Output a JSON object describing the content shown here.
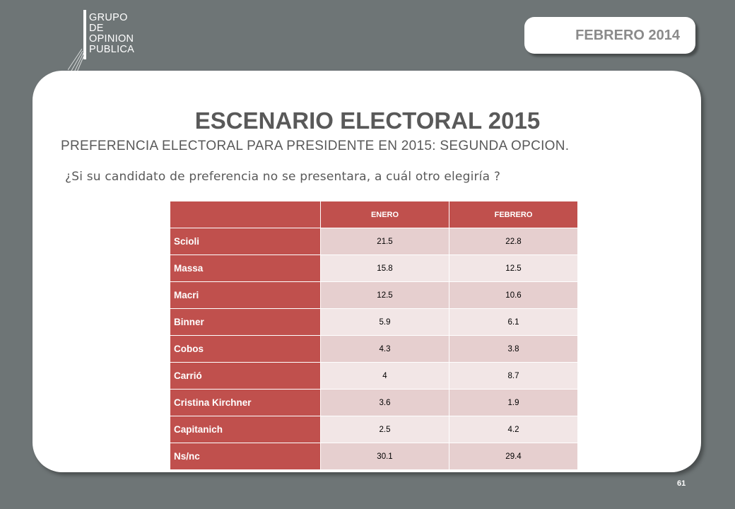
{
  "logo": {
    "lines": [
      "GRUPO",
      "DE",
      "OPINION",
      "PUBLICA"
    ]
  },
  "date_badge": "FEBRERO 2014",
  "title": "ESCENARIO ELECTORAL 2015",
  "subtitle": "PREFERENCIA ELECTORAL PARA PRESIDENTE EN 2015: SEGUNDA OPCION.",
  "question": "¿Si su candidato de preferencia no se presentara, a cuál otro elegiría ?",
  "table": {
    "headers": [
      "",
      "ENERO",
      "FEBRERO"
    ],
    "rows": [
      {
        "name": "Scioli",
        "enero": "21.5",
        "febrero": "22.8"
      },
      {
        "name": "Massa",
        "enero": "15.8",
        "febrero": "12.5"
      },
      {
        "name": "Macri",
        "enero": "12.5",
        "febrero": "10.6"
      },
      {
        "name": "Binner",
        "enero": "5.9",
        "febrero": "6.1"
      },
      {
        "name": "Cobos",
        "enero": "4.3",
        "febrero": "3.8"
      },
      {
        "name": "Carrió",
        "enero": "4",
        "febrero": "8.7"
      },
      {
        "name": "Cristina Kirchner",
        "enero": "3.6",
        "febrero": "1.9"
      },
      {
        "name": "Capitanich",
        "enero": "2.5",
        "febrero": "4.2"
      },
      {
        "name": "Ns/nc",
        "enero": "30.1",
        "febrero": "29.4"
      }
    ]
  },
  "colors": {
    "header_red": "#c0504d",
    "row_dark": "#e6cfcf",
    "row_light": "#f2e6e6",
    "background": "#6e7576"
  },
  "page_number": "61"
}
